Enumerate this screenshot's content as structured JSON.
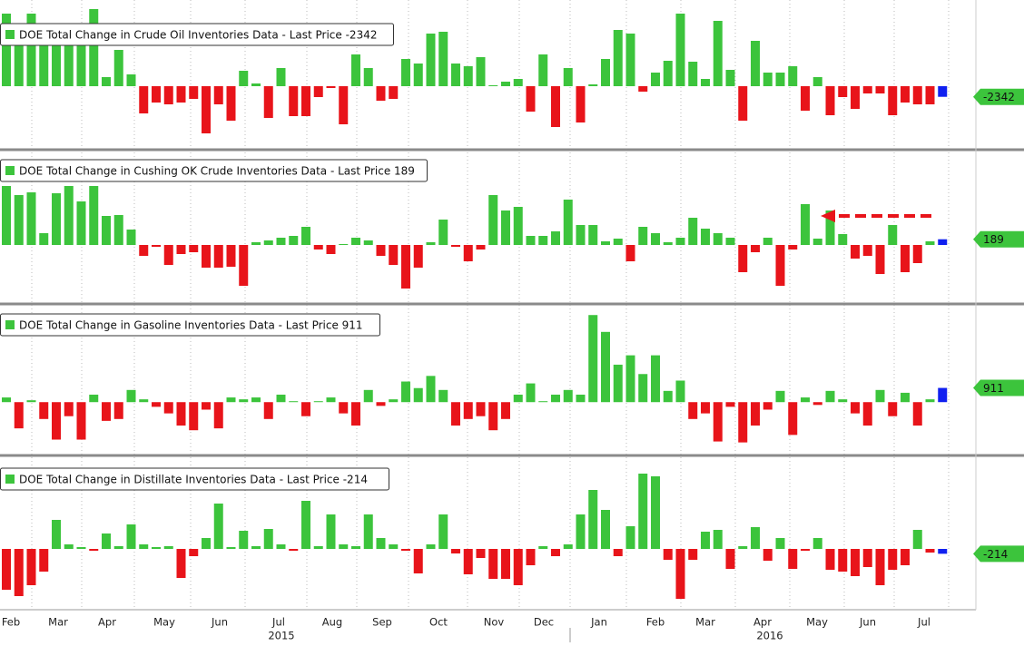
{
  "chart_data": [
    {
      "type": "bar",
      "title": "DOE Total Change in Crude Oil Inventories Data - Last Price -2342",
      "ylim": [
        -13000,
        18000
      ],
      "colors": {
        "positive": "#3cc43c",
        "negative": "#e8141a",
        "last": "#1020f0"
      },
      "values": [
        16000,
        12000,
        16000,
        12000,
        9000,
        11000,
        9000,
        17000,
        2000,
        8000,
        2600,
        -6000,
        -3600,
        -4000,
        -3600,
        -2800,
        -10400,
        -4000,
        -7600,
        3400,
        600,
        -7000,
        4000,
        -6600,
        -6600,
        -2400,
        -400,
        -8400,
        7000,
        4000,
        -3200,
        -2800,
        6000,
        5000,
        11600,
        12000,
        5000,
        4400,
        6400,
        200,
        1000,
        1600,
        -5600,
        7000,
        -9000,
        4000,
        -8000,
        400,
        6000,
        12400,
        11600,
        -1200,
        3000,
        5600,
        16000,
        5400,
        1600,
        14400,
        3600,
        -7600,
        10000,
        3000,
        3000,
        4400,
        -5400,
        2000,
        -6400,
        -2400,
        -5000,
        -1600,
        -1600,
        -6400,
        -3600,
        -4000,
        -4000,
        -2342
      ]
    },
    {
      "type": "bar",
      "title": "DOE Total Change in Cushing OK Crude Inventories Data - Last Price 189",
      "ylim": [
        -1800,
        3000
      ],
      "colors": {
        "positive": "#3cc43c",
        "negative": "#e8141a",
        "last": "#1020f0"
      },
      "values": [
        1950,
        1650,
        1740,
        390,
        1710,
        1950,
        1440,
        1950,
        960,
        990,
        510,
        -360,
        -60,
        -660,
        -300,
        -240,
        -750,
        -750,
        -720,
        -1350,
        90,
        150,
        240,
        300,
        600,
        -150,
        -300,
        30,
        240,
        150,
        -360,
        -660,
        -1440,
        -750,
        90,
        840,
        -60,
        -540,
        -150,
        1650,
        1140,
        1260,
        300,
        300,
        450,
        1500,
        660,
        660,
        120,
        210,
        -540,
        600,
        390,
        90,
        240,
        900,
        540,
        390,
        240,
        -900,
        -240,
        240,
        -1350,
        -150,
        1350,
        210,
        1140,
        360,
        -450,
        -360,
        -960,
        660,
        -900,
        -600,
        120,
        189
      ]
    },
    {
      "type": "bar",
      "title": "DOE Total Change in Gasoline Inventories Data - Last Price 911",
      "ylim": [
        -3300,
        6000
      ],
      "colors": {
        "positive": "#3cc43c",
        "negative": "#e8141a",
        "last": "#1020f0"
      },
      "values": [
        300,
        -1680,
        120,
        -1080,
        -2400,
        -900,
        -2400,
        480,
        -1200,
        -1080,
        780,
        180,
        -300,
        -720,
        -1500,
        -1800,
        -480,
        -1680,
        300,
        180,
        300,
        -1080,
        480,
        60,
        -900,
        60,
        300,
        -720,
        -1500,
        780,
        -240,
        180,
        1320,
        900,
        1680,
        780,
        -1500,
        -1080,
        -900,
        -1800,
        -1080,
        480,
        1200,
        60,
        480,
        780,
        480,
        5580,
        4500,
        2400,
        3000,
        1800,
        3000,
        720,
        1380,
        -1080,
        -720,
        -2520,
        -300,
        -2580,
        -1500,
        -480,
        720,
        -2100,
        300,
        -180,
        720,
        180,
        -720,
        -1500,
        780,
        -900,
        600,
        -1500,
        180,
        911
      ]
    },
    {
      "type": "bar",
      "title": "DOE Total Change in Distillate Inventories Data - Last Price -214",
      "ylim": [
        -2600,
        3800
      ],
      "colors": {
        "positive": "#3cc43c",
        "negative": "#e8141a",
        "last": "#1020f0"
      },
      "values": [
        -1800,
        -2080,
        -1600,
        -1000,
        1280,
        200,
        80,
        -80,
        680,
        120,
        1080,
        200,
        80,
        120,
        -1280,
        -320,
        480,
        2000,
        80,
        800,
        120,
        880,
        200,
        -80,
        2120,
        120,
        1520,
        200,
        120,
        1520,
        480,
        200,
        -80,
        -1080,
        200,
        1520,
        -200,
        -1120,
        -400,
        -1320,
        -1320,
        -1600,
        -720,
        120,
        -320,
        200,
        1520,
        2600,
        1720,
        -320,
        1000,
        3320,
        3200,
        -480,
        -2200,
        -480,
        760,
        840,
        -880,
        120,
        960,
        -520,
        480,
        -880,
        -80,
        480,
        -920,
        -1000,
        -1200,
        -800,
        -1600,
        -920,
        -720,
        840,
        -160,
        -214
      ]
    }
  ],
  "x_axis": {
    "months": [
      "Feb",
      "Mar",
      "Apr",
      "May",
      "Jun",
      "Jul",
      "Aug",
      "Sep",
      "Oct",
      "Nov",
      "Dec",
      "Jan",
      "Feb",
      "Mar",
      "Apr",
      "May",
      "Jun",
      "Jul"
    ],
    "years": [
      "2015",
      "2016"
    ]
  }
}
